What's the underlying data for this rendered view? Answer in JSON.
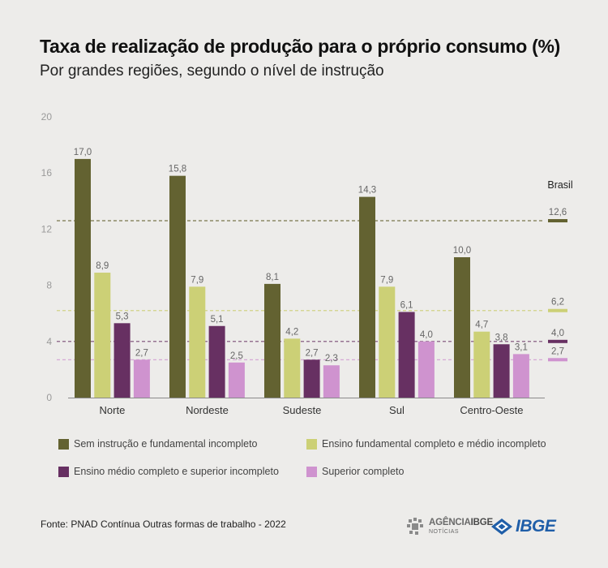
{
  "header": {
    "title": "Taxa de realização de produção para o próprio consumo (%)",
    "subtitle": "Por grandes regiões, segundo o nível de instrução"
  },
  "chart_data": {
    "type": "bar",
    "title": "Taxa de realização de produção para o próprio consumo (%)",
    "subtitle": "Por grandes regiões, segundo o nível de instrução",
    "categories": [
      "Norte",
      "Nordeste",
      "Sudeste",
      "Sul",
      "Centro-Oeste"
    ],
    "series": [
      {
        "name": "Sem instrução e fundamental incompleto",
        "color": "#636231",
        "values": [
          17.0,
          15.8,
          8.1,
          14.3,
          10.0
        ],
        "labels": [
          "17,0",
          "15,8",
          "8,1",
          "14,3",
          "10,0"
        ]
      },
      {
        "name": "Ensino fundamental completo e médio incompleto",
        "color": "#ccd076",
        "values": [
          8.9,
          7.9,
          4.2,
          7.9,
          4.7
        ],
        "labels": [
          "8,9",
          "7,9",
          "4,2",
          "7,9",
          "4,7"
        ]
      },
      {
        "name": "Ensino médio completo e superior incompleto",
        "color": "#673062",
        "values": [
          5.3,
          5.1,
          2.7,
          6.1,
          3.8
        ],
        "labels": [
          "5,3",
          "5,1",
          "2,7",
          "6,1",
          "3,8"
        ]
      },
      {
        "name": "Superior completo",
        "color": "#cf93cf",
        "values": [
          2.7,
          2.5,
          2.3,
          4.0,
          3.1
        ],
        "labels": [
          "2,7",
          "2,5",
          "2,3",
          "4,0",
          "3,1"
        ]
      }
    ],
    "reference": {
      "label": "Brasil",
      "values": [
        12.6,
        6.2,
        4.0,
        2.7
      ],
      "labels": [
        "12,6",
        "6,2",
        "4,0",
        "2,7"
      ]
    },
    "yticks": [
      0,
      4,
      8,
      12,
      16,
      20
    ],
    "ylim": [
      0,
      20
    ],
    "grid": false,
    "legend_position": "bottom"
  },
  "source": "Fonte: PNAD Contínua Outras formas de trabalho - 2022",
  "logos": {
    "agencia_line1": "AGÊNCIA",
    "agencia_line1_b": "IBGE",
    "agencia_line2": "NOTÍCIAS",
    "ibge": "IBGE"
  }
}
